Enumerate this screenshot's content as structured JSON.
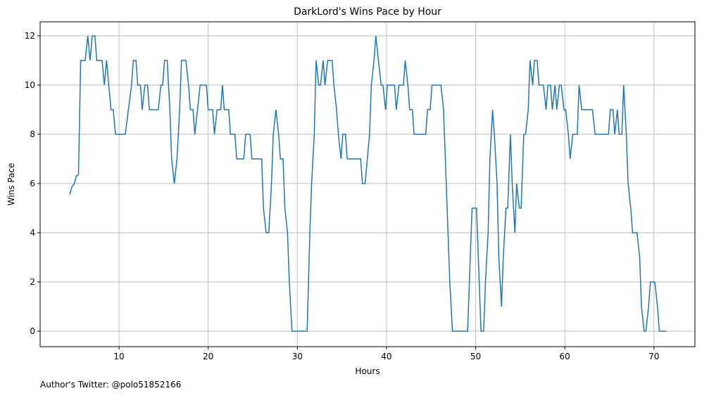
{
  "chart_data": {
    "type": "line",
    "title": "DarkLord's Wins Pace by Hour",
    "xlabel": "Hours",
    "ylabel": "Wins Pace",
    "annotation": "Author's Twitter: @polo51852166",
    "x": [
      4.47,
      4.7,
      5.0,
      5.2,
      5.45,
      5.7,
      6.2,
      6.5,
      6.75,
      7.0,
      7.3,
      7.5,
      8.1,
      8.35,
      8.6,
      9.1,
      9.35,
      9.6,
      10.7,
      11.4,
      11.6,
      11.9,
      12.1,
      12.4,
      12.6,
      12.9,
      13.2,
      13.4,
      14.4,
      14.7,
      14.9,
      15.1,
      15.4,
      15.7,
      15.9,
      16.2,
      16.5,
      16.8,
      17.0,
      17.5,
      17.8,
      18.0,
      18.3,
      18.5,
      18.8,
      19.1,
      19.8,
      20.0,
      20.5,
      20.7,
      21.0,
      21.4,
      21.6,
      21.8,
      22.3,
      22.5,
      23.0,
      23.2,
      24.0,
      24.2,
      24.7,
      24.9,
      26.0,
      26.2,
      26.5,
      26.8,
      27.1,
      27.3,
      27.6,
      27.9,
      28.1,
      28.4,
      28.6,
      28.9,
      29.1,
      29.4,
      31.1,
      31.4,
      31.6,
      31.9,
      32.1,
      32.4,
      32.6,
      32.9,
      33.1,
      33.4,
      33.9,
      34.1,
      34.4,
      34.6,
      34.9,
      35.1,
      35.4,
      35.6,
      37.1,
      37.3,
      37.6,
      38.1,
      38.3,
      38.6,
      38.8,
      39.1,
      39.4,
      39.6,
      39.9,
      40.1,
      40.9,
      41.1,
      41.4,
      41.9,
      42.1,
      42.4,
      42.6,
      42.9,
      43.1,
      44.4,
      44.6,
      44.9,
      45.1,
      46.1,
      46.4,
      46.6,
      46.9,
      47.1,
      47.4,
      49.1,
      49.4,
      49.6,
      50.1,
      50.4,
      50.6,
      50.9,
      51.1,
      51.4,
      51.6,
      51.9,
      52.1,
      52.4,
      52.6,
      52.9,
      53.1,
      53.4,
      53.6,
      53.9,
      54.1,
      54.4,
      54.6,
      54.9,
      55.1,
      55.4,
      55.6,
      55.9,
      56.1,
      56.4,
      56.6,
      56.9,
      57.1,
      57.6,
      57.9,
      58.1,
      58.4,
      58.6,
      58.9,
      59.1,
      59.4,
      59.6,
      59.9,
      60.1,
      60.4,
      60.6,
      60.9,
      61.4,
      61.6,
      61.9,
      63.1,
      63.4,
      64.9,
      65.1,
      65.4,
      65.6,
      65.9,
      66.1,
      66.4,
      66.6,
      66.9,
      67.1,
      67.4,
      67.6,
      68.1,
      68.4,
      68.6,
      68.9,
      69.1,
      69.4,
      69.6,
      70.1,
      70.4,
      70.6,
      71.4
    ],
    "series": [
      {
        "name": "Wins Pace",
        "color": "#1f77b4",
        "values": [
          5.55,
          5.85,
          6.0,
          6.3,
          6.35,
          11,
          11,
          12,
          11,
          12,
          12,
          11,
          11,
          10,
          11,
          9,
          9,
          8,
          8,
          10,
          11,
          11,
          10,
          10,
          9,
          10,
          10,
          9,
          9,
          10,
          10,
          11,
          11,
          9,
          7,
          6,
          7,
          9,
          11,
          11,
          10,
          9,
          9,
          8,
          9,
          10,
          10,
          9,
          9,
          8,
          9,
          9,
          10,
          9,
          9,
          8,
          8,
          7,
          7,
          8,
          8,
          7,
          7,
          5,
          4,
          4,
          6,
          8,
          9,
          8,
          7,
          7,
          5,
          4,
          2,
          0,
          0,
          4,
          6,
          8,
          11,
          10,
          10,
          11,
          10,
          11,
          11,
          10,
          9,
          8,
          7,
          8,
          8,
          7,
          7,
          6,
          6,
          8,
          10,
          11,
          12,
          11,
          10,
          10,
          9,
          10,
          10,
          9,
          10,
          10,
          11,
          10,
          9,
          9,
          8,
          8,
          9,
          9,
          10,
          10,
          9,
          7,
          4,
          2,
          0,
          0,
          3,
          5,
          5,
          2,
          0,
          0,
          2,
          4,
          7,
          9,
          8,
          6,
          3,
          1,
          3,
          5,
          5,
          8,
          6,
          4,
          6,
          5,
          5,
          8,
          8,
          9,
          11,
          10,
          11,
          11,
          10,
          10,
          9,
          10,
          10,
          9,
          10,
          9,
          10,
          10,
          9,
          9,
          8,
          7,
          8,
          8,
          10,
          9,
          9,
          8,
          8,
          9,
          9,
          8,
          9,
          8,
          8,
          10,
          8,
          6,
          5,
          4,
          4,
          3,
          1,
          0,
          0,
          1,
          2,
          2,
          1,
          0,
          0
        ]
      }
    ],
    "xlim": [
      1.15,
      74.6
    ],
    "ylim": [
      -0.63,
      12.57
    ],
    "xticks": [
      10,
      20,
      30,
      40,
      50,
      60,
      70
    ],
    "yticks": [
      0,
      2,
      4,
      6,
      8,
      10,
      12
    ],
    "grid": true
  }
}
